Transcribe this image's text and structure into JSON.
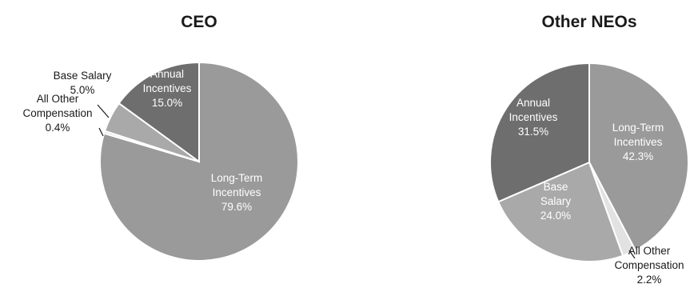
{
  "chart_data": [
    {
      "type": "pie",
      "title": "CEO",
      "slices": [
        {
          "name": "Long-Term Incentives",
          "value": 79.6,
          "label": "79.6%",
          "color": "#9a9a9a",
          "lines": [
            "Long-Term",
            "Incentives"
          ]
        },
        {
          "name": "All Other Compensation",
          "value": 0.4,
          "label": "0.4%",
          "color": "#e2e2e2",
          "lines": [
            "All Other",
            "Compensation"
          ]
        },
        {
          "name": "Base Salary",
          "value": 5.0,
          "label": "5.0%",
          "color": "#a9a9a9",
          "lines": [
            "Base Salary"
          ]
        },
        {
          "name": "Annual Incentives",
          "value": 15.0,
          "label": "15.0%",
          "color": "#6e6e6e",
          "lines": [
            "Annual",
            "Incentives"
          ]
        }
      ]
    },
    {
      "type": "pie",
      "title": "Other NEOs",
      "slices": [
        {
          "name": "Long-Term Incentives",
          "value": 42.3,
          "label": "42.3%",
          "color": "#9a9a9a",
          "lines": [
            "Long-Term",
            "Incentives"
          ]
        },
        {
          "name": "All Other Compensation",
          "value": 2.2,
          "label": "2.2%",
          "color": "#e2e2e2",
          "lines": [
            "All Other",
            "Compensation"
          ]
        },
        {
          "name": "Base Salary",
          "value": 24.0,
          "label": "24.0%",
          "color": "#a9a9a9",
          "lines": [
            "Base",
            "Salary"
          ]
        },
        {
          "name": "Annual Incentives",
          "value": 31.5,
          "label": "31.5%",
          "color": "#6e6e6e",
          "lines": [
            "Annual",
            "Incentives"
          ]
        }
      ]
    }
  ]
}
